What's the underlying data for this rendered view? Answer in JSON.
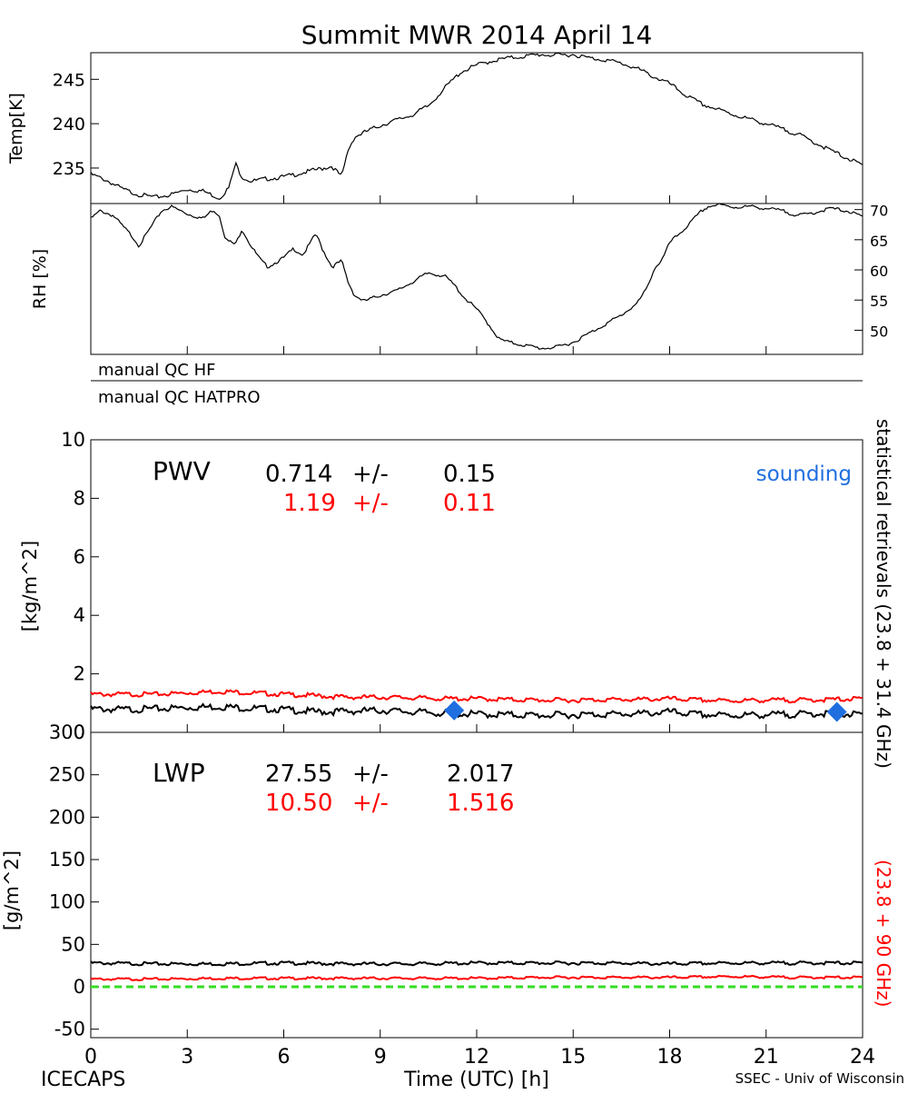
{
  "page": {
    "title": "Summit MWR 2014 April 14",
    "footer_left": "ICECAPS",
    "footer_right": "SSEC - Univ of Wisconsin",
    "manual_qc": [
      "manual QC HF",
      "manual QC HATPRO"
    ],
    "right_label_black": "statistical retrievals (23.8 + 31.4 GHz)",
    "right_label_red": "(23.8 + 90 GHz)"
  },
  "colors": {
    "black": "#000000",
    "red": "#ff0000",
    "blue": "#1f6fe0",
    "green": "#33dd22"
  },
  "chart_data": [
    {
      "type": "line",
      "panel": "temperature",
      "ylabel": "Temp[K]",
      "y_ticks": [
        235,
        240,
        245
      ],
      "ylim": [
        231,
        248
      ],
      "xlim": [
        0,
        24
      ],
      "x": [
        0,
        0.5,
        1,
        1.5,
        2,
        2.5,
        3,
        3.5,
        4,
        4.3,
        4.5,
        4.7,
        5,
        5.5,
        6,
        6.5,
        7,
        7.5,
        7.8,
        8,
        8.2,
        8.5,
        9,
        9.5,
        10,
        10.5,
        11,
        11.5,
        12,
        12.5,
        13,
        13.5,
        14,
        14.5,
        15,
        15.5,
        16,
        16.5,
        17,
        17.5,
        18,
        18.5,
        19,
        19.5,
        20,
        21,
        22,
        23,
        24
      ],
      "y": [
        234.3,
        233.6,
        232.6,
        232.0,
        231.7,
        232.0,
        232.6,
        232.4,
        231.6,
        232.8,
        235.5,
        234.0,
        233.5,
        233.8,
        234.0,
        234.4,
        234.8,
        235.2,
        234.0,
        237.0,
        238.5,
        239.0,
        239.8,
        240.4,
        241.0,
        242.0,
        244.0,
        245.8,
        246.6,
        247.1,
        247.4,
        247.6,
        247.8,
        247.7,
        247.8,
        247.4,
        247.2,
        246.8,
        246.2,
        245.3,
        244.5,
        243.2,
        242.2,
        241.6,
        241.0,
        240.0,
        238.8,
        237.0,
        235.3
      ],
      "series": [
        {
          "name": "",
          "color": "#000000"
        }
      ]
    },
    {
      "type": "line",
      "panel": "relative_humidity",
      "ylabel": "RH [%]",
      "y_ticks": [
        50,
        55,
        60,
        65,
        70
      ],
      "ylim": [
        46,
        71
      ],
      "xlim": [
        0,
        24
      ],
      "x": [
        0,
        0.3,
        0.7,
        1,
        1.3,
        1.5,
        1.8,
        2.2,
        2.5,
        3,
        3.5,
        3.8,
        4,
        4.2,
        4.5,
        4.7,
        5,
        5.3,
        5.5,
        6,
        6.3,
        6.6,
        7,
        7.2,
        7.5,
        7.8,
        8,
        8.2,
        8.5,
        9,
        9.5,
        10,
        10.5,
        11,
        11.3,
        11.6,
        12,
        12.3,
        12.7,
        13,
        13.5,
        14,
        14.5,
        15,
        15.5,
        16,
        16.5,
        17,
        17.3,
        17.5,
        17.8,
        18,
        18.5,
        19,
        19.2,
        19.5,
        20,
        20.5,
        21,
        21.5,
        22,
        22.5,
        23,
        23.5,
        24
      ],
      "y": [
        68.5,
        69.8,
        69.0,
        67.2,
        65.5,
        64.0,
        66.5,
        69.8,
        70.5,
        69.3,
        68.5,
        70.0,
        69.0,
        65.0,
        64.2,
        66.8,
        63.8,
        61.5,
        60.5,
        62.0,
        63.5,
        62.5,
        66.0,
        63.5,
        60.5,
        61.5,
        58.0,
        55.8,
        54.8,
        55.8,
        56.5,
        58.0,
        59.5,
        59.0,
        57.5,
        55.5,
        53.5,
        51.5,
        48.5,
        48.0,
        47.5,
        47.0,
        47.2,
        48.0,
        49.5,
        51.0,
        52.5,
        54.5,
        57.0,
        60.0,
        62.0,
        64.5,
        67.0,
        69.8,
        70.5,
        70.8,
        70.4,
        70.5,
        70.2,
        69.8,
        69.0,
        69.5,
        70.2,
        69.8,
        68.8
      ],
      "series": [
        {
          "name": "",
          "color": "#000000"
        }
      ]
    },
    {
      "type": "line",
      "panel": "precipitable_water_vapor",
      "ylabel": "[kg/m^2]",
      "y_ticks": [
        0,
        2,
        4,
        6,
        8,
        10
      ],
      "ylim": [
        0,
        10
      ],
      "xlim": [
        0,
        24
      ],
      "annotation_label": "PWV",
      "stats": [
        {
          "mean": "0.714",
          "pm": "+/-",
          "std": "0.15",
          "color": "#000000"
        },
        {
          "mean": "1.19",
          "pm": "+/-",
          "std": "0.11",
          "color": "#ff0000"
        }
      ],
      "legend_sounding": "sounding",
      "x": [
        0,
        1,
        2,
        3,
        4,
        5,
        6,
        7,
        8,
        9,
        10,
        11,
        12,
        13,
        14,
        15,
        16,
        17,
        18,
        19,
        20,
        21,
        22,
        23,
        24
      ],
      "series": [
        {
          "color": "#000000",
          "values": [
            0.8,
            0.78,
            0.8,
            0.85,
            0.88,
            0.82,
            0.78,
            0.7,
            0.72,
            0.75,
            0.7,
            0.65,
            0.62,
            0.6,
            0.58,
            0.6,
            0.62,
            0.63,
            0.7,
            0.6,
            0.58,
            0.6,
            0.62,
            0.65,
            0.6
          ]
        },
        {
          "color": "#ff0000",
          "values": [
            1.3,
            1.3,
            1.3,
            1.35,
            1.4,
            1.35,
            1.3,
            1.25,
            1.2,
            1.2,
            1.18,
            1.15,
            1.15,
            1.12,
            1.1,
            1.1,
            1.12,
            1.12,
            1.15,
            1.1,
            1.08,
            1.1,
            1.1,
            1.12,
            1.15
          ]
        }
      ],
      "sounding_points": [
        {
          "x": 11.3,
          "y": 0.75
        },
        {
          "x": 23.2,
          "y": 0.7
        }
      ]
    },
    {
      "type": "line",
      "panel": "liquid_water_path",
      "ylabel": "[g/m^2]",
      "xlabel": "Time (UTC) [h]",
      "y_ticks": [
        -50,
        0,
        50,
        100,
        150,
        200,
        250,
        300
      ],
      "ylim": [
        -60,
        300
      ],
      "xlim": [
        0,
        24
      ],
      "x_ticks": [
        0,
        3,
        6,
        9,
        12,
        15,
        18,
        21,
        24
      ],
      "annotation_label": "LWP",
      "stats": [
        {
          "mean": "27.55",
          "pm": "+/-",
          "std": "2.017",
          "color": "#000000"
        },
        {
          "mean": "10.50",
          "pm": "+/-",
          "std": "1.516",
          "color": "#ff0000"
        }
      ],
      "x": [
        0,
        2,
        4,
        6,
        8,
        10,
        12,
        14,
        16,
        18,
        20,
        22,
        24
      ],
      "series": [
        {
          "color": "#000000",
          "values": [
            28,
            27,
            27,
            28,
            27,
            27,
            28,
            28,
            28,
            27,
            28,
            28,
            28
          ]
        },
        {
          "color": "#ff0000",
          "values": [
            9,
            9,
            10,
            10,
            10,
            10,
            10,
            11,
            11,
            11,
            12,
            11,
            11
          ]
        }
      ],
      "zero_line": 0
    }
  ]
}
